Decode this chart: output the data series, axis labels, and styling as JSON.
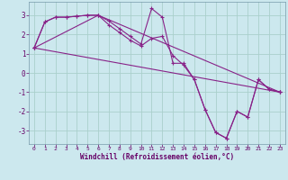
{
  "xlabel": "Windchill (Refroidissement éolien,°C)",
  "background_color": "#cce8ee",
  "grid_color": "#aacfcc",
  "line_color": "#882288",
  "xlim": [
    -0.5,
    23.5
  ],
  "ylim": [
    -3.7,
    3.7
  ],
  "yticks": [
    -3,
    -2,
    -1,
    0,
    1,
    2,
    3
  ],
  "xticks": [
    0,
    1,
    2,
    3,
    4,
    5,
    6,
    7,
    8,
    9,
    10,
    11,
    12,
    13,
    14,
    15,
    16,
    17,
    18,
    19,
    20,
    21,
    22,
    23
  ],
  "series1_x": [
    0,
    1,
    2,
    3,
    4,
    5,
    6,
    7,
    8,
    9,
    10,
    11,
    12,
    13,
    14,
    15,
    16,
    17,
    18,
    19,
    20,
    21,
    22,
    23
  ],
  "series1_y": [
    1.3,
    2.65,
    2.9,
    2.9,
    2.95,
    3.0,
    3.0,
    2.7,
    2.3,
    1.9,
    1.5,
    3.35,
    2.9,
    0.5,
    0.5,
    -0.35,
    -1.9,
    -3.1,
    -3.4,
    -2.0,
    -2.3,
    -0.35,
    -0.85,
    -1.0
  ],
  "series2_x": [
    0,
    1,
    2,
    3,
    4,
    5,
    6,
    7,
    8,
    9,
    10,
    11,
    12,
    13,
    14,
    15,
    16,
    17,
    18,
    19,
    20,
    21,
    22,
    23
  ],
  "series2_y": [
    1.3,
    2.65,
    2.9,
    2.9,
    2.95,
    3.0,
    3.0,
    2.5,
    2.1,
    1.7,
    1.4,
    1.8,
    1.9,
    0.9,
    0.4,
    -0.35,
    -1.9,
    -3.1,
    -3.4,
    -2.0,
    -2.3,
    -0.35,
    -0.85,
    -1.0
  ],
  "series3_x": [
    0,
    23
  ],
  "series3_y": [
    1.3,
    -1.0
  ],
  "series4_x": [
    0,
    6,
    23
  ],
  "series4_y": [
    1.3,
    3.0,
    -1.0
  ]
}
